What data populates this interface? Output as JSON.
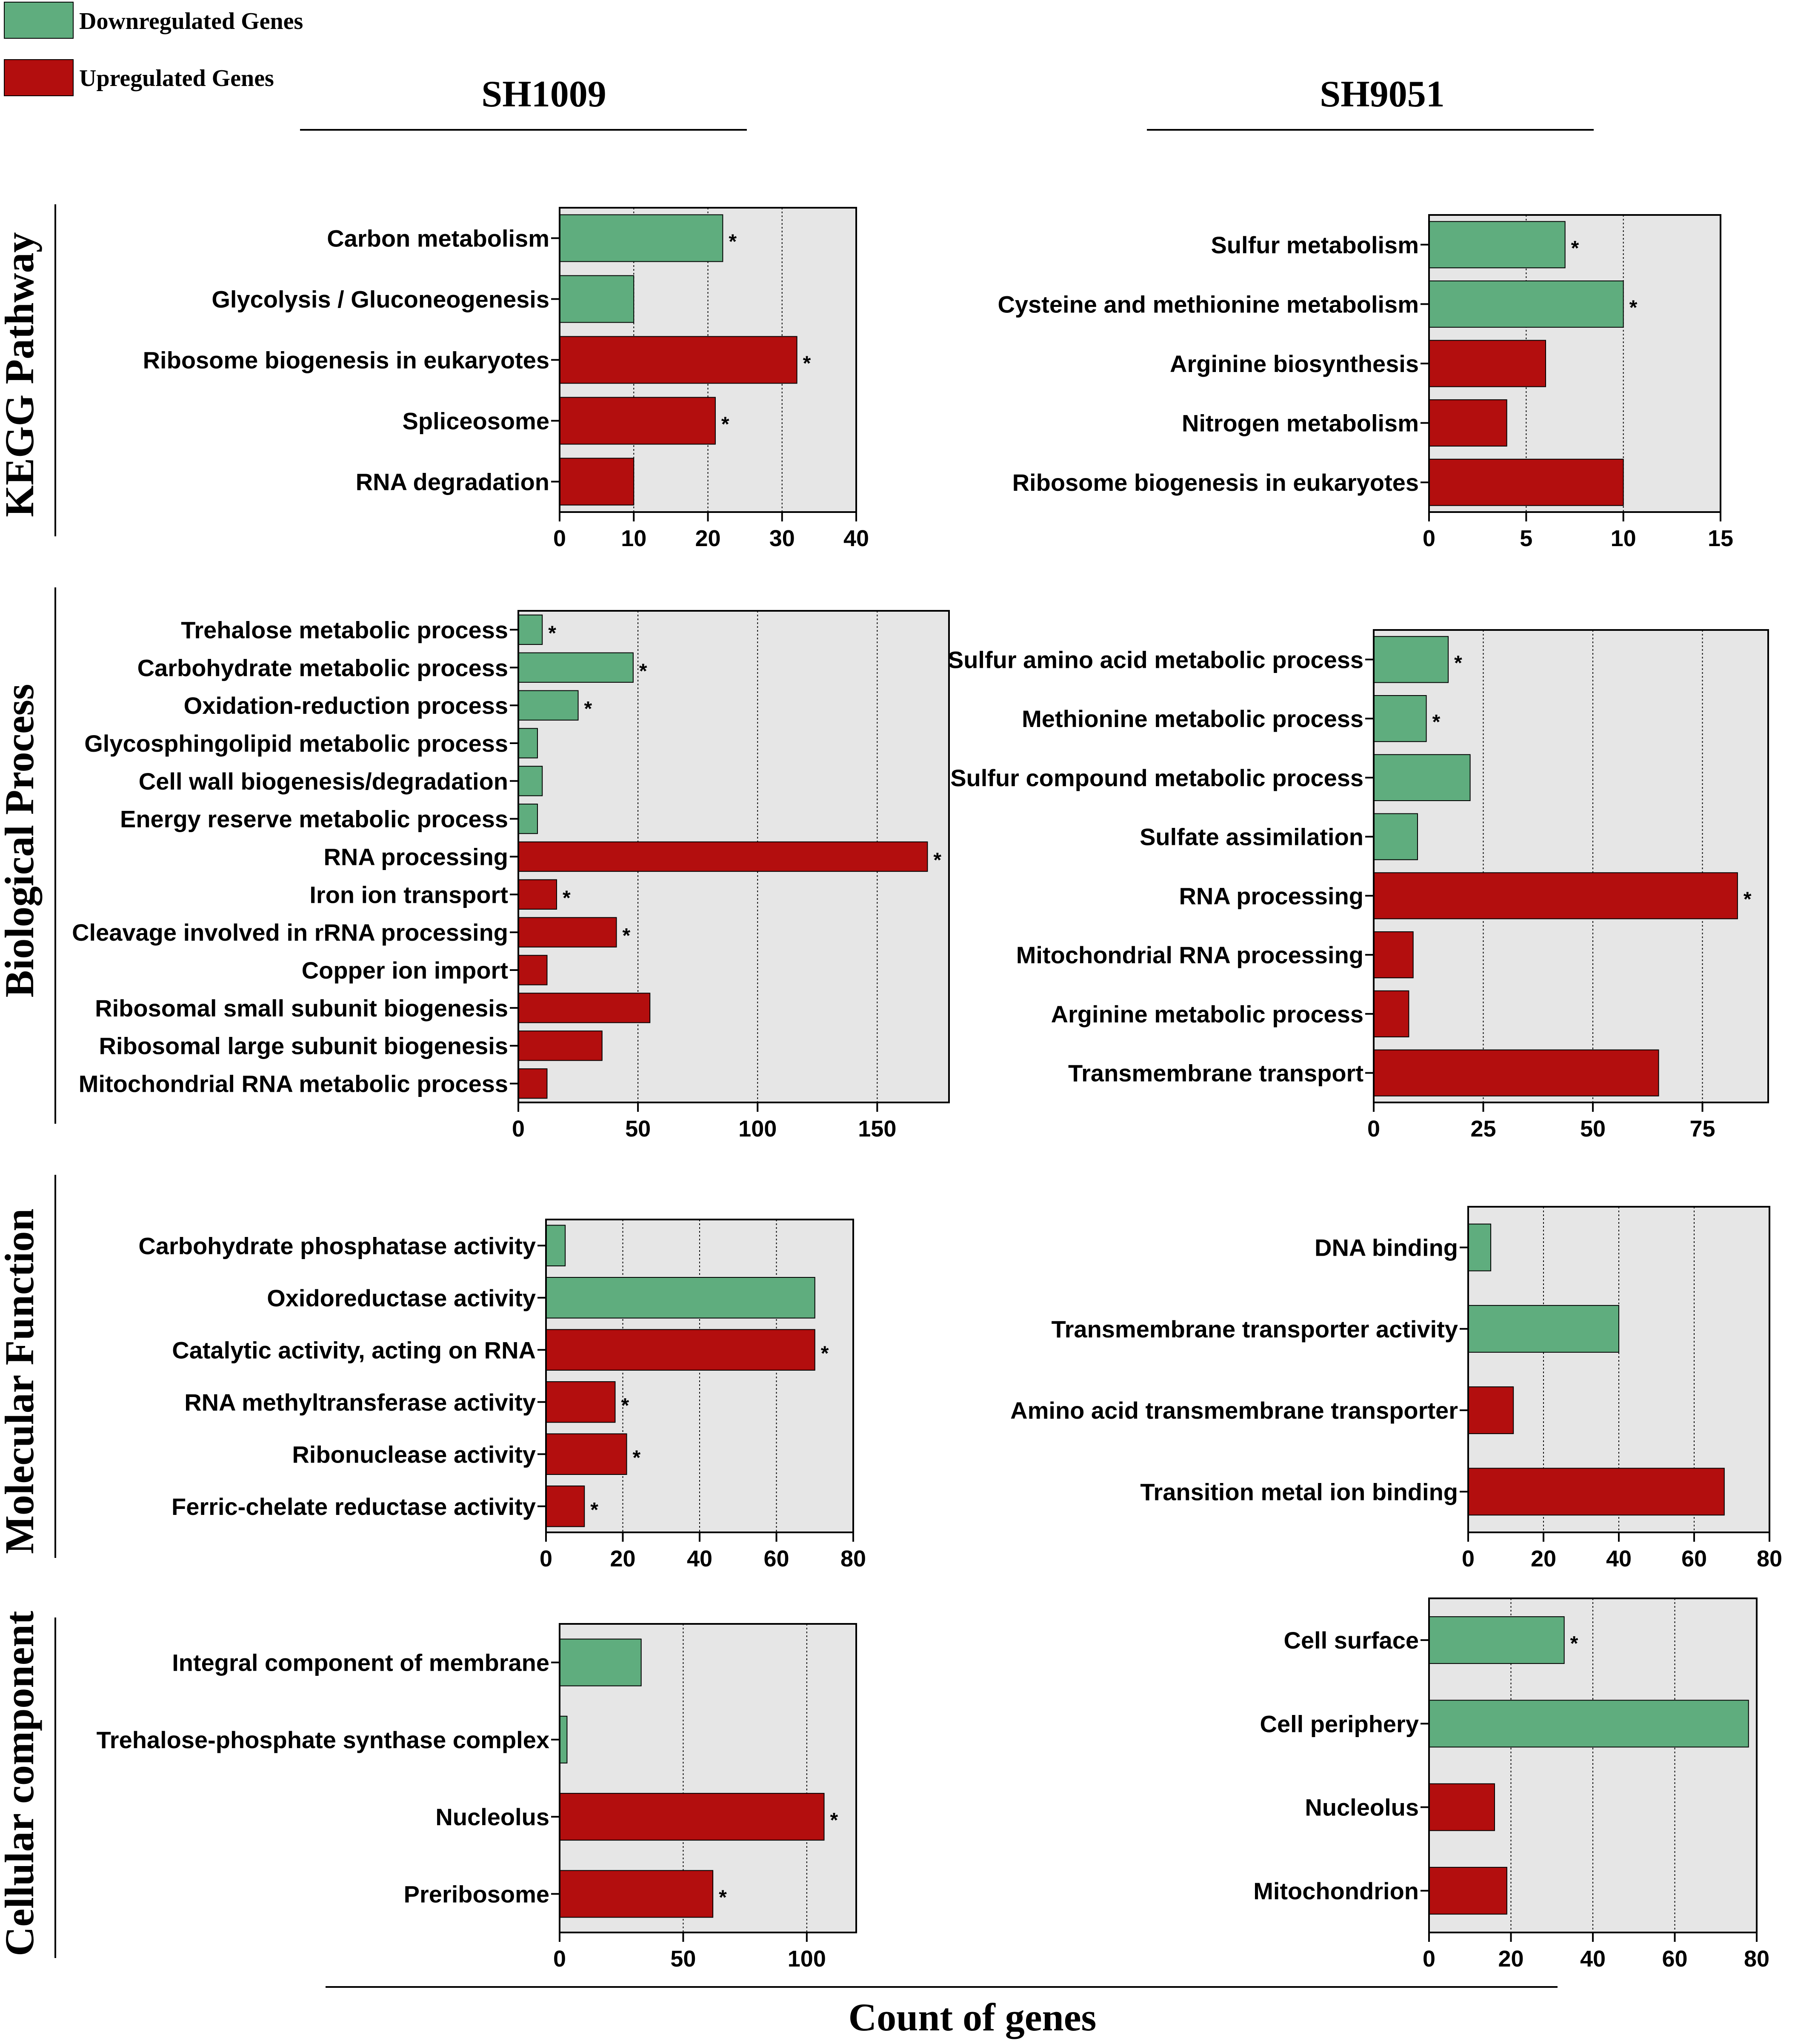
{
  "colors": {
    "down": "#5fad7e",
    "up": "#b30e0e",
    "panel_bg": "#e6e6e6",
    "axis": "#000000"
  },
  "legend": [
    {
      "label": "Downregulated Genes",
      "color_key": "down"
    },
    {
      "label": "Upregulated Genes",
      "color_key": "up"
    }
  ],
  "columns": [
    "SH1009",
    "SH9051"
  ],
  "rows": [
    "KEGG Pathway",
    "Biological Process",
    "Molecular Function",
    "Cellular component"
  ],
  "xaxis_title": "Count of genes",
  "chart_data": [
    {
      "type": "bar",
      "orientation": "horizontal",
      "strain": "SH1009",
      "category": "KEGG Pathway",
      "xlim": [
        0,
        40
      ],
      "xticks": [
        0,
        10,
        20,
        30,
        40
      ],
      "xlabel": "Count of genes",
      "bars": [
        {
          "label": "Carbon metabolism",
          "value": 22,
          "reg": "down",
          "star": "*"
        },
        {
          "label": "Glycolysis / Gluconeogenesis",
          "value": 10,
          "reg": "down",
          "star": ""
        },
        {
          "label": "Ribosome biogenesis in eukaryotes",
          "value": 32,
          "reg": "up",
          "star": "*"
        },
        {
          "label": "Spliceosome",
          "value": 21,
          "reg": "up",
          "star": "*"
        },
        {
          "label": "RNA degradation",
          "value": 10,
          "reg": "up",
          "star": ""
        }
      ]
    },
    {
      "type": "bar",
      "orientation": "horizontal",
      "strain": "SH9051",
      "category": "KEGG Pathway",
      "xlim": [
        0,
        15
      ],
      "xticks": [
        0,
        5,
        10,
        15
      ],
      "xlabel": "Count of genes",
      "bars": [
        {
          "label": "Sulfur metabolism",
          "value": 7,
          "reg": "down",
          "star": "*"
        },
        {
          "label": "Cysteine and methionine metabolism",
          "value": 10,
          "reg": "down",
          "star": "*"
        },
        {
          "label": "Arginine biosynthesis",
          "value": 6,
          "reg": "up",
          "star": ""
        },
        {
          "label": "Nitrogen metabolism",
          "value": 4,
          "reg": "up",
          "star": ""
        },
        {
          "label": "Ribosome biogenesis in eukaryotes",
          "value": 10,
          "reg": "up",
          "star": ""
        }
      ]
    },
    {
      "type": "bar",
      "orientation": "horizontal",
      "strain": "SH1009",
      "category": "Biological Process",
      "xlim": [
        0,
        180
      ],
      "xticks": [
        0,
        50,
        100,
        150
      ],
      "xlabel": "Count of genes",
      "bars": [
        {
          "label": "Trehalose metabolic process",
          "value": 10,
          "reg": "down",
          "star": "*"
        },
        {
          "label": "Carbohydrate metabolic process",
          "value": 48,
          "reg": "down",
          "star": "*"
        },
        {
          "label": "Oxidation-reduction process",
          "value": 25,
          "reg": "down",
          "star": "*"
        },
        {
          "label": "Glycosphingolipid metabolic process",
          "value": 8,
          "reg": "down",
          "star": ""
        },
        {
          "label": "Cell wall biogenesis/degradation",
          "value": 10,
          "reg": "down",
          "star": ""
        },
        {
          "label": "Energy reserve metabolic process",
          "value": 8,
          "reg": "down",
          "star": ""
        },
        {
          "label": "RNA processing",
          "value": 171,
          "reg": "up",
          "star": "*"
        },
        {
          "label": "Iron ion transport",
          "value": 16,
          "reg": "up",
          "star": "*"
        },
        {
          "label": "Cleavage involved in rRNA processing",
          "value": 41,
          "reg": "up",
          "star": "*"
        },
        {
          "label": "Copper ion import",
          "value": 12,
          "reg": "up",
          "star": ""
        },
        {
          "label": "Ribosomal small subunit biogenesis",
          "value": 55,
          "reg": "up",
          "star": ""
        },
        {
          "label": "Ribosomal large subunit biogenesis",
          "value": 35,
          "reg": "up",
          "star": ""
        },
        {
          "label": "Mitochondrial RNA metabolic process",
          "value": 12,
          "reg": "up",
          "star": ""
        }
      ]
    },
    {
      "type": "bar",
      "orientation": "horizontal",
      "strain": "SH9051",
      "category": "Biological Process",
      "xlim": [
        0,
        90
      ],
      "xticks": [
        0,
        25,
        50,
        75
      ],
      "xlabel": "Count of genes",
      "bars": [
        {
          "label": "Sulfur amino acid metabolic process",
          "value": 17,
          "reg": "down",
          "star": "*"
        },
        {
          "label": "Methionine metabolic process",
          "value": 12,
          "reg": "down",
          "star": "*"
        },
        {
          "label": "Sulfur compound metabolic process",
          "value": 22,
          "reg": "down",
          "star": ""
        },
        {
          "label": "Sulfate assimilation",
          "value": 10,
          "reg": "down",
          "star": ""
        },
        {
          "label": "RNA processing",
          "value": 83,
          "reg": "up",
          "star": "*"
        },
        {
          "label": "Mitochondrial RNA processing",
          "value": 9,
          "reg": "up",
          "star": ""
        },
        {
          "label": "Arginine metabolic process",
          "value": 8,
          "reg": "up",
          "star": ""
        },
        {
          "label": "Transmembrane transport",
          "value": 65,
          "reg": "up",
          "star": ""
        }
      ]
    },
    {
      "type": "bar",
      "orientation": "horizontal",
      "strain": "SH1009",
      "category": "Molecular Function",
      "xlim": [
        0,
        80
      ],
      "xticks": [
        0,
        20,
        40,
        60,
        80
      ],
      "xlabel": "Count of genes",
      "bars": [
        {
          "label": "Carbohydrate phosphatase activity",
          "value": 5,
          "reg": "down",
          "star": ""
        },
        {
          "label": "Oxidoreductase activity",
          "value": 70,
          "reg": "down",
          "star": ""
        },
        {
          "label": "Catalytic activity, acting on RNA",
          "value": 70,
          "reg": "up",
          "star": "*"
        },
        {
          "label": "RNA methyltransferase activity",
          "value": 18,
          "reg": "up",
          "star": "*"
        },
        {
          "label": "Ribonuclease activity",
          "value": 21,
          "reg": "up",
          "star": "*"
        },
        {
          "label": "Ferric-chelate reductase activity",
          "value": 10,
          "reg": "up",
          "star": "*"
        }
      ]
    },
    {
      "type": "bar",
      "orientation": "horizontal",
      "strain": "SH9051",
      "category": "Molecular Function",
      "xlim": [
        0,
        80
      ],
      "xticks": [
        0,
        20,
        40,
        60,
        80
      ],
      "xlabel": "Count of genes",
      "bars": [
        {
          "label": "DNA binding",
          "value": 6,
          "reg": "down",
          "star": ""
        },
        {
          "label": "Transmembrane transporter activity",
          "value": 40,
          "reg": "down",
          "star": ""
        },
        {
          "label": "Amino acid transmembrane transporter",
          "value": 12,
          "reg": "up",
          "star": ""
        },
        {
          "label": "Transition metal ion binding",
          "value": 68,
          "reg": "up",
          "star": ""
        }
      ]
    },
    {
      "type": "bar",
      "orientation": "horizontal",
      "strain": "SH1009",
      "category": "Cellular component",
      "xlim": [
        0,
        120
      ],
      "xticks": [
        0,
        50,
        100
      ],
      "xlabel": "Count of genes",
      "bars": [
        {
          "label": "Integral component of membrane",
          "value": 33,
          "reg": "down",
          "star": ""
        },
        {
          "label": "Trehalose-phosphate synthase complex",
          "value": 3,
          "reg": "down",
          "star": ""
        },
        {
          "label": "Nucleolus",
          "value": 107,
          "reg": "up",
          "star": "*"
        },
        {
          "label": "Preribosome",
          "value": 62,
          "reg": "up",
          "star": "*"
        }
      ]
    },
    {
      "type": "bar",
      "orientation": "horizontal",
      "strain": "SH9051",
      "category": "Cellular component",
      "xlim": [
        0,
        80
      ],
      "xticks": [
        0,
        20,
        40,
        60,
        80
      ],
      "xlabel": "Count of genes",
      "bars": [
        {
          "label": "Cell surface",
          "value": 33,
          "reg": "down",
          "star": "*"
        },
        {
          "label": "Cell periphery",
          "value": 78,
          "reg": "down",
          "star": ""
        },
        {
          "label": "Nucleolus",
          "value": 16,
          "reg": "up",
          "star": ""
        },
        {
          "label": "Mitochondrion",
          "value": 19,
          "reg": "up",
          "star": ""
        }
      ]
    }
  ]
}
